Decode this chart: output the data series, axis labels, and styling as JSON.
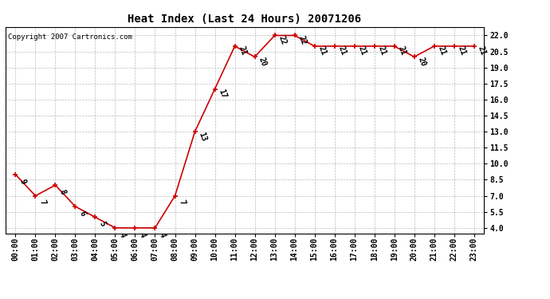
{
  "title": "Heat Index (Last 24 Hours) 20071206",
  "copyright": "Copyright 2007 Cartronics.com",
  "x_labels": [
    "00:00",
    "01:00",
    "02:00",
    "03:00",
    "04:00",
    "05:00",
    "06:00",
    "07:00",
    "08:00",
    "09:00",
    "10:00",
    "11:00",
    "12:00",
    "13:00",
    "14:00",
    "15:00",
    "16:00",
    "17:00",
    "18:00",
    "19:00",
    "20:00",
    "21:00",
    "22:00",
    "23:00"
  ],
  "y_values": [
    9,
    7,
    8,
    6,
    5,
    4,
    4,
    4,
    7,
    13,
    17,
    21,
    20,
    22,
    22,
    21,
    21,
    21,
    21,
    21,
    20,
    21,
    21,
    21
  ],
  "line_color": "#cc0000",
  "marker_color": "#cc0000",
  "bg_color": "#ffffff",
  "grid_color": "#bbbbbb",
  "yticks": [
    4.0,
    5.5,
    7.0,
    8.5,
    10.0,
    11.5,
    13.0,
    14.5,
    16.0,
    17.5,
    19.0,
    20.5,
    22.0
  ],
  "ylim": [
    3.5,
    22.8
  ],
  "title_fontsize": 10,
  "tick_fontsize": 7,
  "annotation_fontsize": 7,
  "copyright_fontsize": 6.5
}
